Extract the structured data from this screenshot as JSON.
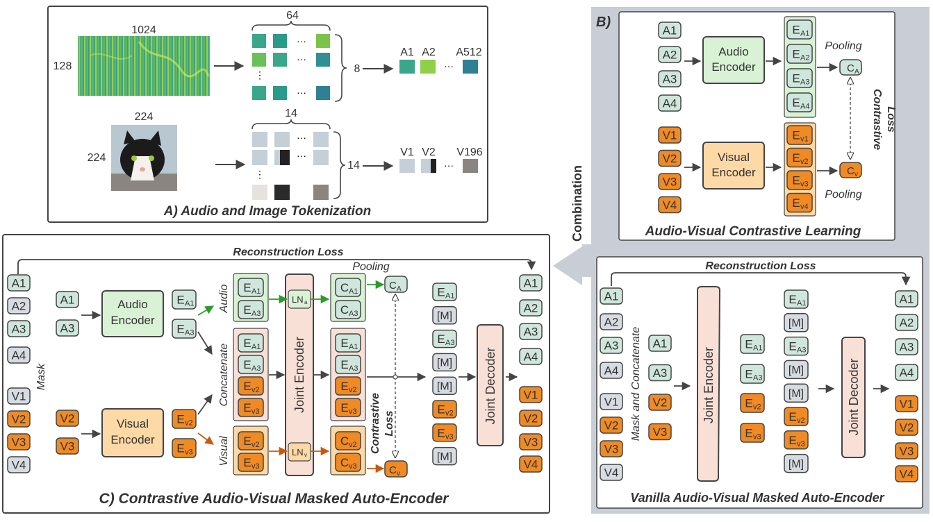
{
  "panelA": {
    "title": "A) Audio and Image Tokenization",
    "audio": {
      "width": "1024",
      "height": "128",
      "col_count": "64",
      "row_count": "8",
      "tokens": [
        "A1",
        "A2",
        "A512"
      ]
    },
    "image": {
      "width": "224",
      "height": "224",
      "col_count": "14",
      "row_count": "14",
      "tokens": [
        "V1",
        "V2",
        "V196"
      ]
    },
    "ellipsis": "···",
    "vdots": "⋮"
  },
  "panelB": {
    "label": "B)",
    "title": "Audio-Visual Contrastive Learning",
    "audio_tokens": [
      "A1",
      "A2",
      "A3",
      "A4"
    ],
    "visual_tokens": [
      "V1",
      "V2",
      "V3",
      "V4"
    ],
    "audio_encoder": [
      "Audio",
      "Encoder"
    ],
    "visual_encoder": [
      "Visual",
      "Encoder"
    ],
    "audio_embeds": [
      "A1",
      "A2",
      "A3",
      "A4"
    ],
    "visual_embeds": [
      "v1",
      "v2",
      "v3",
      "v4"
    ],
    "pooling": "Pooling",
    "contrastive": [
      "Contrastive",
      "Loss"
    ],
    "ca_sub": "A",
    "cv_sub": "v"
  },
  "combination": "Combination",
  "panelC": {
    "title": "C) Contrastive Audio-Visual Masked Auto-Encoder",
    "recon_loss": "Reconstruction Loss",
    "mask": "Mask",
    "inputs": [
      "A1",
      "A2",
      "A3",
      "A4",
      "V1",
      "V2",
      "V3",
      "V4"
    ],
    "audio_kept": [
      "A1",
      "A3"
    ],
    "visual_kept": [
      "V2",
      "V3"
    ],
    "audio_encoder": [
      "Audio",
      "Encoder"
    ],
    "visual_encoder": [
      "Visual",
      "Encoder"
    ],
    "branch_labels": [
      "Audio",
      "Concatenate",
      "Visual"
    ],
    "joint_encoder": "Joint Encoder",
    "joint_decoder": "Joint Decoder",
    "ln_a": "a",
    "ln_v": "v",
    "ln": "LN",
    "pooling": "Pooling",
    "contrastive": [
      "Contrastive",
      "Loss"
    ],
    "mask_token": "[M]",
    "outputs": [
      "A1",
      "A2",
      "A3",
      "A4",
      "V1",
      "V2",
      "V3",
      "V4"
    ]
  },
  "panelD": {
    "title": "Vanilla Audio-Visual Masked Auto-Encoder",
    "recon_loss": "Reconstruction Loss",
    "mask_concat": "Mask and Concatenate",
    "inputs": [
      "A1",
      "A2",
      "A3",
      "A4",
      "V1",
      "V2",
      "V3",
      "V4"
    ],
    "kept": [
      "A1",
      "A3",
      "V2",
      "V3"
    ],
    "joint_encoder": "Joint Encoder",
    "joint_decoder": "Joint Decoder",
    "mask_token": "[M]",
    "outputs": [
      "A1",
      "A2",
      "A3",
      "A4",
      "V1",
      "V2",
      "V3",
      "V4"
    ]
  },
  "colors": {
    "audio_token": "#cfe6dc",
    "visual_token": "#f08a24",
    "masked_token": "#d7dbe2",
    "encoder_audio": "#d9f2d5",
    "encoder_visual": "#fdd9a6",
    "joint": "#f9e0d6",
    "combo_bg": "#c8cdd6",
    "green_arrow": "#2c9a2c",
    "orange_arrow": "#c85a10"
  }
}
